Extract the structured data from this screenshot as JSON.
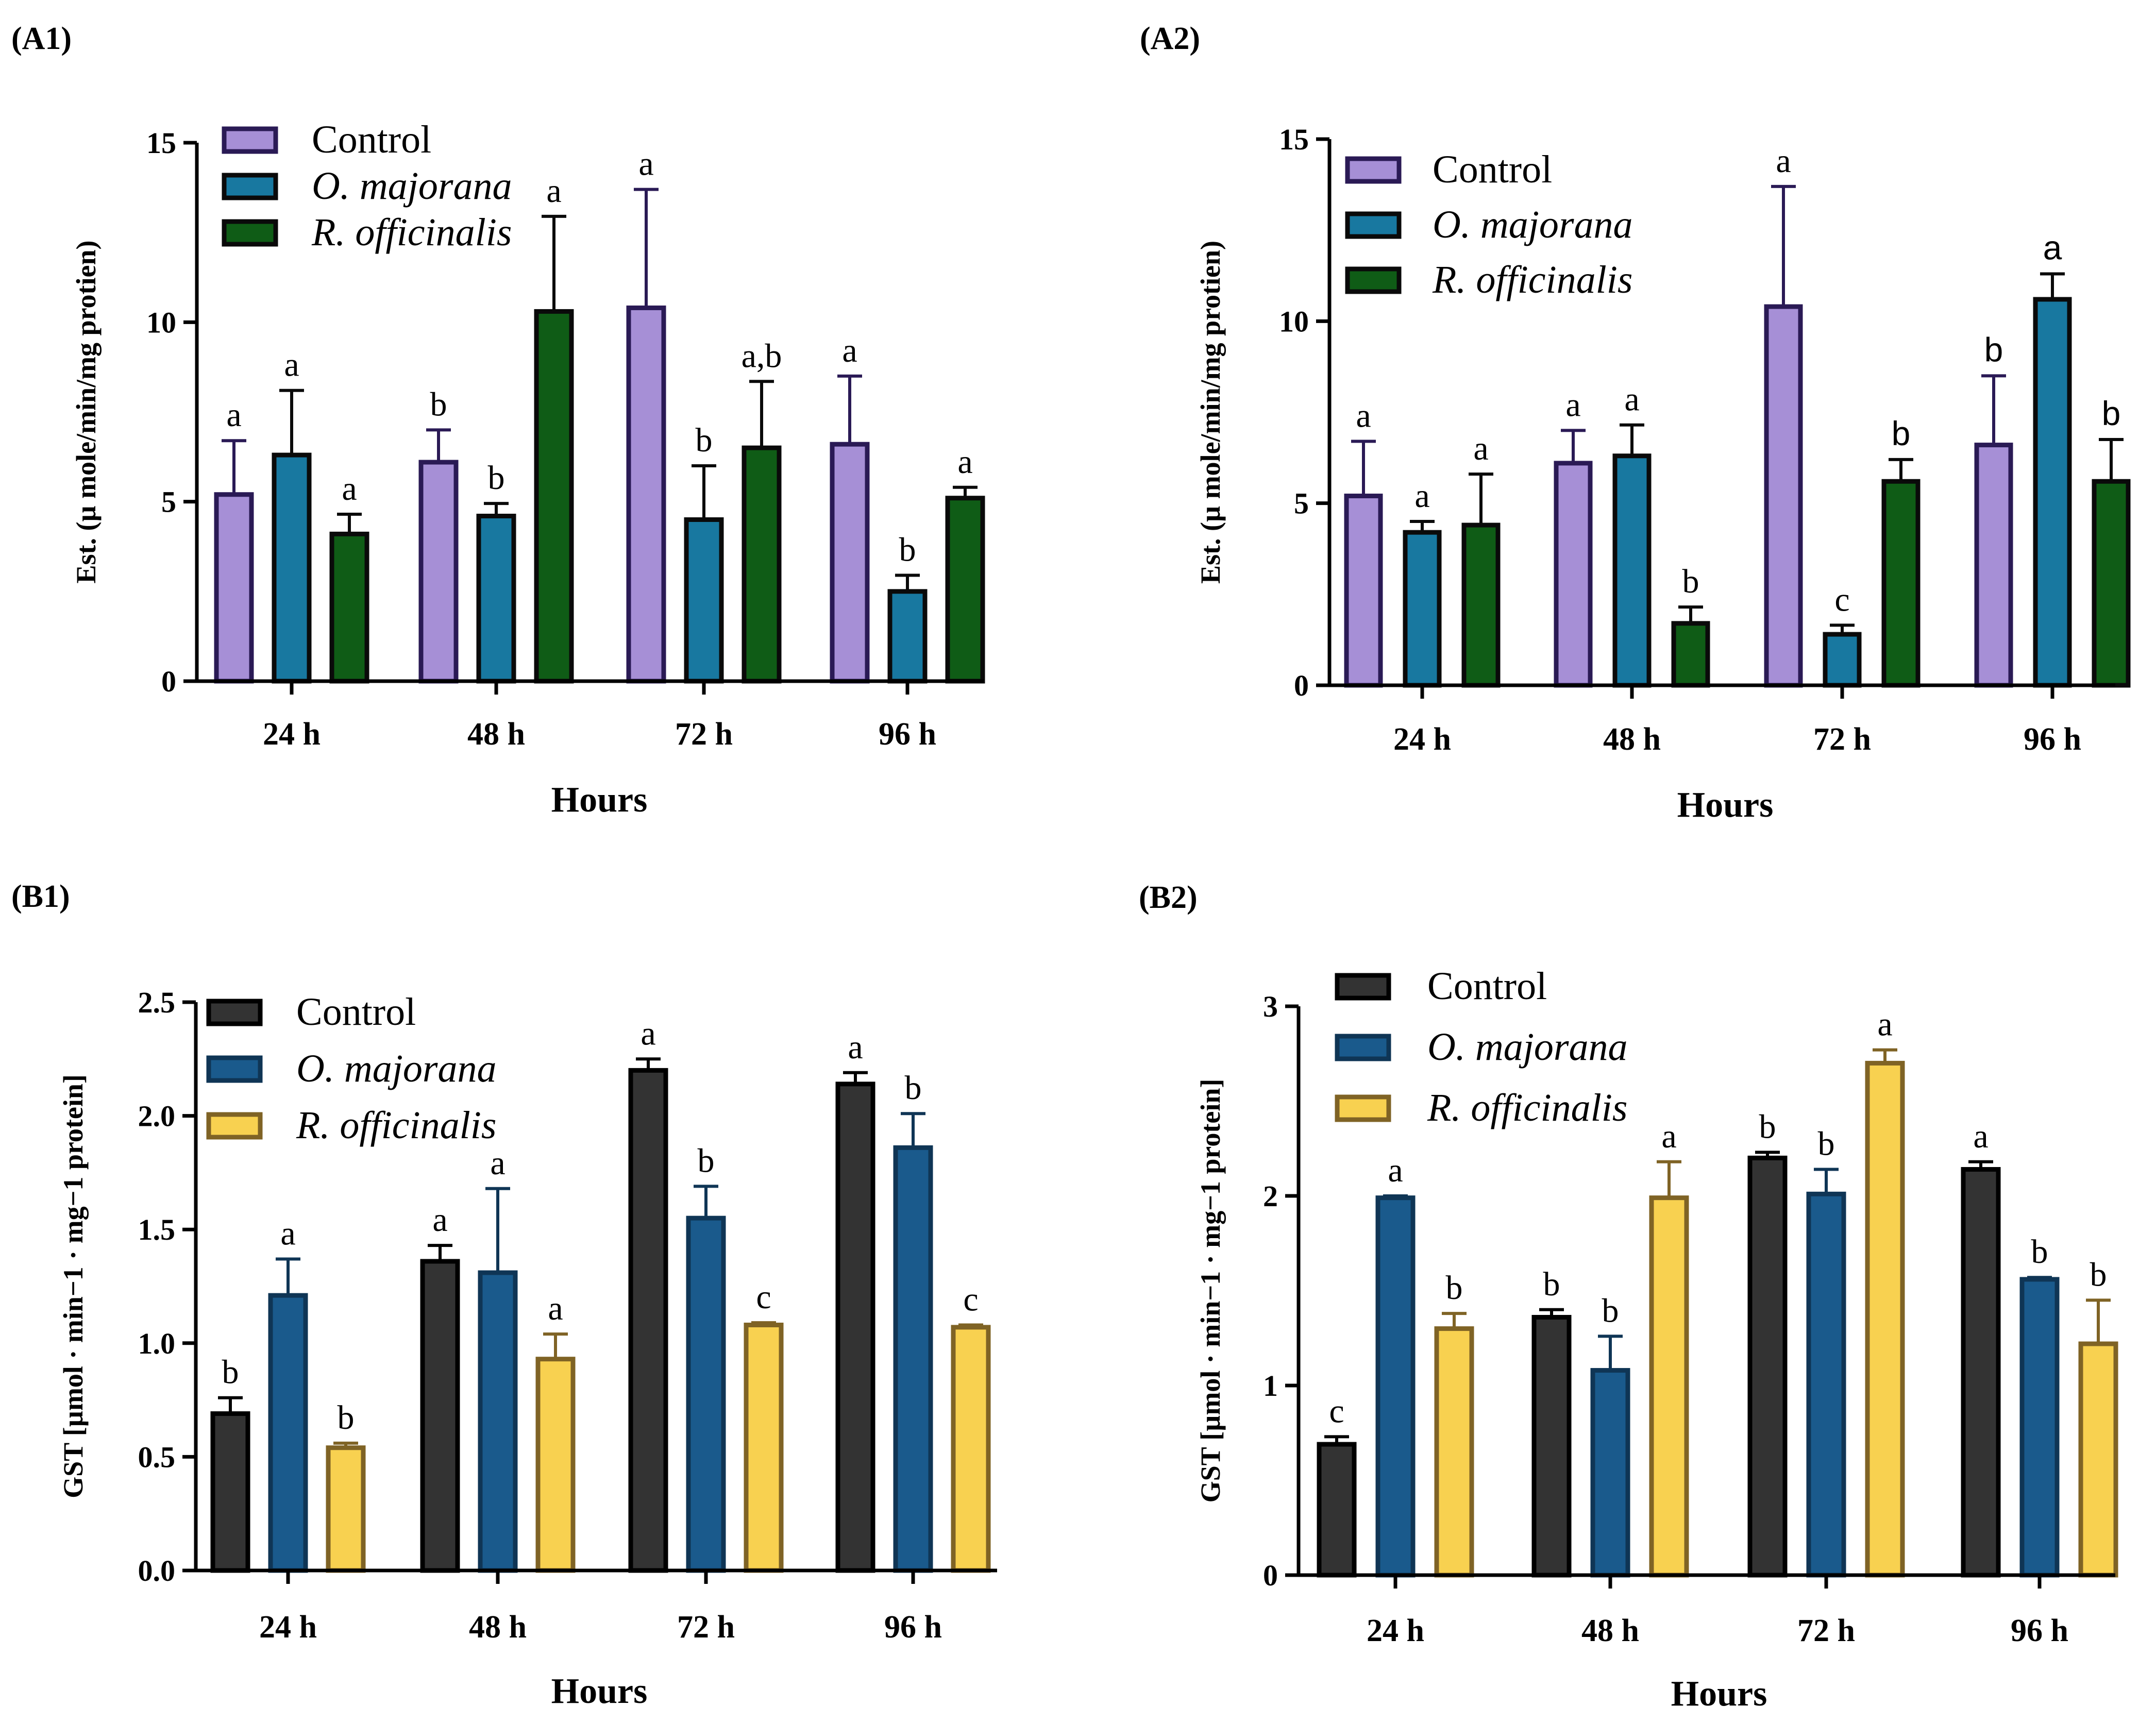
{
  "chart_data": [
    {
      "panel_label": "(A1)",
      "type": "bar",
      "title": "",
      "xlabel": "Hours",
      "ylabel": "Est. (µ mole/min/mg protien)",
      "ylim": [
        0,
        15
      ],
      "yticks": [
        0,
        5,
        10,
        15
      ],
      "ytick_labels": [
        "0",
        "5",
        "10",
        "15"
      ],
      "categories": [
        "24 h",
        "48 h",
        "72 h",
        "96 h"
      ],
      "legend_position": "top-left",
      "series": [
        {
          "name": "Control",
          "italic": false,
          "fill": "#a68fd6",
          "stroke": "#2a1a55",
          "values": [
            5.2,
            6.1,
            10.4,
            6.6
          ],
          "errors": [
            1.5,
            0.9,
            3.3,
            1.9
          ],
          "letters": [
            "a",
            "b",
            "a",
            "a"
          ]
        },
        {
          "name": "O. majorana",
          "italic": true,
          "fill": "#1878a0",
          "stroke": "#0a0a0a",
          "values": [
            6.3,
            4.6,
            4.5,
            2.5
          ],
          "errors": [
            1.8,
            0.35,
            1.5,
            0.45
          ],
          "letters": [
            "a",
            "b",
            "b",
            "b"
          ]
        },
        {
          "name": "R. officinalis",
          "italic": true,
          "fill": "#0f5c16",
          "stroke": "#0a0a0a",
          "values": [
            4.1,
            10.3,
            6.5,
            5.1
          ],
          "errors": [
            0.55,
            2.65,
            1.85,
            0.3
          ],
          "letters": [
            "a",
            "a",
            "a,b",
            "a"
          ]
        }
      ]
    },
    {
      "panel_label": "(A2)",
      "type": "bar",
      "title": "",
      "xlabel": "Hours",
      "ylabel": "Est. (µ mole/min/mg protien)",
      "ylim": [
        0,
        15
      ],
      "yticks": [
        0,
        5,
        10,
        15
      ],
      "ytick_labels": [
        "0",
        "5",
        "10",
        "15"
      ],
      "categories": [
        "24 h",
        "48 h",
        "72 h",
        "96 h"
      ],
      "legend_position": "top-left",
      "series": [
        {
          "name": "Control",
          "italic": false,
          "fill": "#a68fd6",
          "stroke": "#2a1a55",
          "values": [
            5.2,
            6.1,
            10.4,
            6.6
          ],
          "errors": [
            1.5,
            0.9,
            3.3,
            1.9
          ],
          "letters": [
            "a",
            "a",
            "a",
            "b"
          ]
        },
        {
          "name": "O. majorana",
          "italic": true,
          "fill": "#1878a0",
          "stroke": "#0a0a0a",
          "values": [
            4.2,
            6.3,
            1.4,
            10.6
          ],
          "errors": [
            0.3,
            0.85,
            0.25,
            0.7
          ],
          "letters": [
            "a",
            "a",
            "c",
            "a"
          ]
        },
        {
          "name": "R. officinalis",
          "italic": true,
          "fill": "#0f5c16",
          "stroke": "#0a0a0a",
          "values": [
            4.4,
            1.7,
            5.6,
            5.6
          ],
          "errors": [
            1.4,
            0.45,
            0.6,
            1.15
          ],
          "letters": [
            "a",
            "b",
            "b",
            "b"
          ]
        }
      ]
    },
    {
      "panel_label": "(B1)",
      "type": "bar",
      "title": "",
      "xlabel": "Hours",
      "ylabel": "GST [µmol · min−1 · mg−1 protein]",
      "ylim": [
        0,
        2.5
      ],
      "yticks": [
        0,
        0.5,
        1.0,
        1.5,
        2.0,
        2.5
      ],
      "ytick_labels": [
        "0.0",
        "0.5",
        "1.0",
        "1.5",
        "2.0",
        "2.5"
      ],
      "categories": [
        "24 h",
        "48 h",
        "72 h",
        "96 h"
      ],
      "legend_position": "top-left",
      "series": [
        {
          "name": "Control",
          "italic": false,
          "fill": "#333333",
          "stroke": "#000000",
          "values": [
            0.69,
            1.36,
            2.2,
            2.14
          ],
          "errors": [
            0.07,
            0.07,
            0.05,
            0.05
          ],
          "letters": [
            "b",
            "a",
            "a",
            "a"
          ]
        },
        {
          "name": "O. majorana",
          "italic": true,
          "fill": "#1a5a8c",
          "stroke": "#0f3555",
          "values": [
            1.21,
            1.31,
            1.55,
            1.86
          ],
          "errors": [
            0.16,
            0.37,
            0.14,
            0.15
          ],
          "letters": [
            "a",
            "a",
            "b",
            "b"
          ]
        },
        {
          "name": "R. officinalis",
          "italic": true,
          "fill": "#f8d150",
          "stroke": "#7f6325",
          "values": [
            0.54,
            0.93,
            1.08,
            1.07
          ],
          "errors": [
            0.02,
            0.11,
            0.01,
            0.01
          ],
          "letters": [
            "b",
            "a",
            "c",
            "c"
          ]
        }
      ]
    },
    {
      "panel_label": "(B2)",
      "type": "bar",
      "title": "",
      "xlabel": "Hours",
      "ylabel": "GST [µmol · min−1 · mg−1 protein]",
      "ylim": [
        0,
        3
      ],
      "yticks": [
        0,
        1,
        2,
        3
      ],
      "ytick_labels": [
        "0",
        "1",
        "2",
        "3"
      ],
      "categories": [
        "24 h",
        "48 h",
        "72 h",
        "96 h"
      ],
      "legend_position": "top-left",
      "series": [
        {
          "name": "Control",
          "italic": false,
          "fill": "#333333",
          "stroke": "#000000",
          "values": [
            0.69,
            1.36,
            2.2,
            2.14
          ],
          "errors": [
            0.04,
            0.04,
            0.03,
            0.04
          ],
          "letters": [
            "c",
            "b",
            "b",
            "a"
          ]
        },
        {
          "name": "O. majorana",
          "italic": true,
          "fill": "#1a5a8c",
          "stroke": "#0f3555",
          "values": [
            1.99,
            1.08,
            2.01,
            1.56
          ],
          "errors": [
            0.01,
            0.18,
            0.13,
            0.01
          ],
          "letters": [
            "a",
            "b",
            "b",
            "b"
          ]
        },
        {
          "name": "R. officinalis",
          "italic": true,
          "fill": "#f8d150",
          "stroke": "#7f6325",
          "values": [
            1.3,
            1.99,
            2.7,
            1.22
          ],
          "errors": [
            0.08,
            0.19,
            0.07,
            0.23
          ],
          "letters": [
            "b",
            "a",
            "a",
            "b"
          ]
        }
      ]
    }
  ]
}
